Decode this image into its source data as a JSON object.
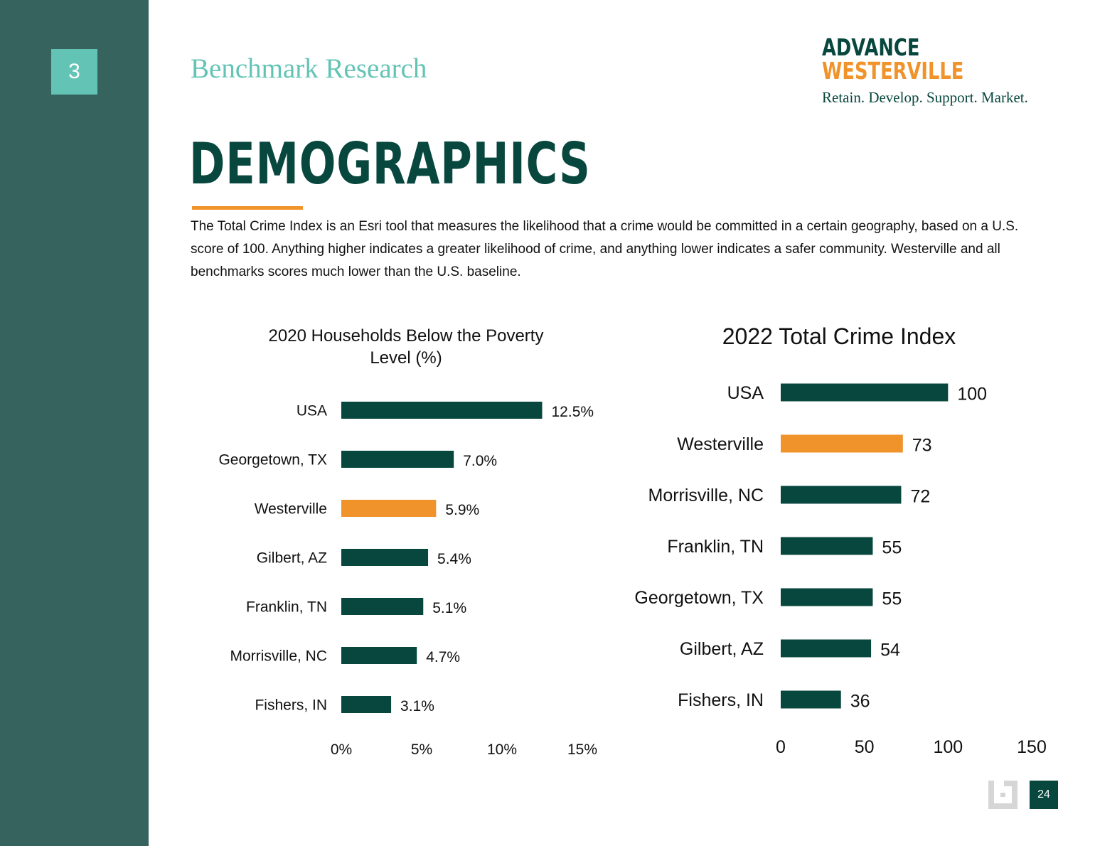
{
  "section": {
    "number": "3",
    "title": "Benchmark Research"
  },
  "logo": {
    "line1": "ADVANCE",
    "line2": "WESTERVILLE",
    "tagline": "Retain. Develop. Support. Market."
  },
  "page": {
    "title": "DEMOGRAPHICS",
    "intro": "The Total Crime Index is an Esri tool that measures the likelihood that a crime would be committed in a certain geography, based on a U.S. score of 100. Anything higher indicates a greater likelihood of crime, and anything lower indicates a safer community. Westerville and all benchmarks scores much lower than the U.S. baseline.",
    "number": "24"
  },
  "colors": {
    "primary": "#07473d",
    "accent": "#f0932b",
    "sidebar": "#37635f",
    "teal": "#63c4b6"
  },
  "chart_data": [
    {
      "id": "poverty",
      "type": "bar",
      "orientation": "horizontal",
      "title": "2020 Households Below the Poverty Level (%)",
      "title_lines": [
        "2020 Households Below the Poverty",
        "Level (%)"
      ],
      "categories": [
        "USA",
        "Georgetown, TX",
        "Westerville",
        "Gilbert, AZ",
        "Franklin, TN",
        "Morrisville, NC",
        "Fishers, IN"
      ],
      "values": [
        12.5,
        7.0,
        5.9,
        5.4,
        5.1,
        4.7,
        3.1
      ],
      "value_labels": [
        "12.5%",
        "7.0%",
        "5.9%",
        "5.4%",
        "5.1%",
        "4.7%",
        "3.1%"
      ],
      "highlight": "Westerville",
      "xlim": [
        0,
        15
      ],
      "xticks": [
        0,
        5,
        10,
        15
      ],
      "xtick_labels": [
        "0%",
        "5%",
        "10%",
        "15%"
      ],
      "grid": false
    },
    {
      "id": "crime",
      "type": "bar",
      "orientation": "horizontal",
      "title": "2022 Total Crime Index",
      "title_lines": [
        "2022 Total Crime Index"
      ],
      "categories": [
        "USA",
        "Westerville",
        "Morrisville, NC",
        "Franklin, TN",
        "Georgetown, TX",
        "Gilbert, AZ",
        "Fishers, IN"
      ],
      "values": [
        100,
        73,
        72,
        55,
        55,
        54,
        36
      ],
      "value_labels": [
        "100",
        "73",
        "72",
        "55",
        "55",
        "54",
        "36"
      ],
      "highlight": "Westerville",
      "xlim": [
        0,
        150
      ],
      "xticks": [
        0,
        50,
        100,
        150
      ],
      "xtick_labels": [
        "0",
        "50",
        "100",
        "150"
      ],
      "grid": false
    }
  ]
}
